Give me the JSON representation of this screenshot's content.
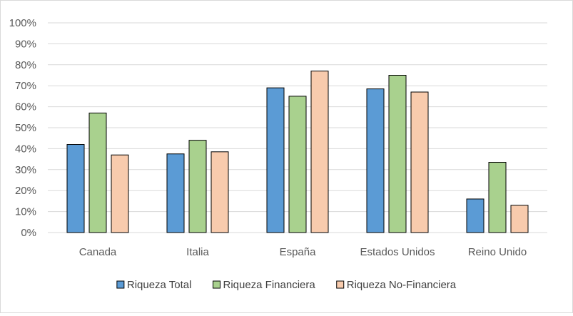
{
  "chart_data": {
    "type": "bar",
    "categories": [
      "Canada",
      "Italia",
      "España",
      "Estados Unidos",
      "Reino Unido"
    ],
    "series": [
      {
        "name": "Riqueza Total",
        "values": [
          42,
          37.5,
          69,
          68.5,
          16
        ],
        "color": "#5b9bd5"
      },
      {
        "name": "Riqueza Financiera",
        "values": [
          57,
          44,
          65,
          75,
          33.5
        ],
        "color": "#a9d18e"
      },
      {
        "name": "Riqueza No-Financiera",
        "values": [
          37,
          38.5,
          77,
          67,
          13
        ],
        "color": "#f8cbad"
      }
    ],
    "ylim": [
      0,
      100
    ],
    "y_ticks": [
      "0%",
      "10%",
      "20%",
      "30%",
      "40%",
      "50%",
      "60%",
      "70%",
      "80%",
      "90%",
      "100%"
    ],
    "grid": true,
    "legend": "bottom",
    "bar_outline_color": "#000000"
  }
}
